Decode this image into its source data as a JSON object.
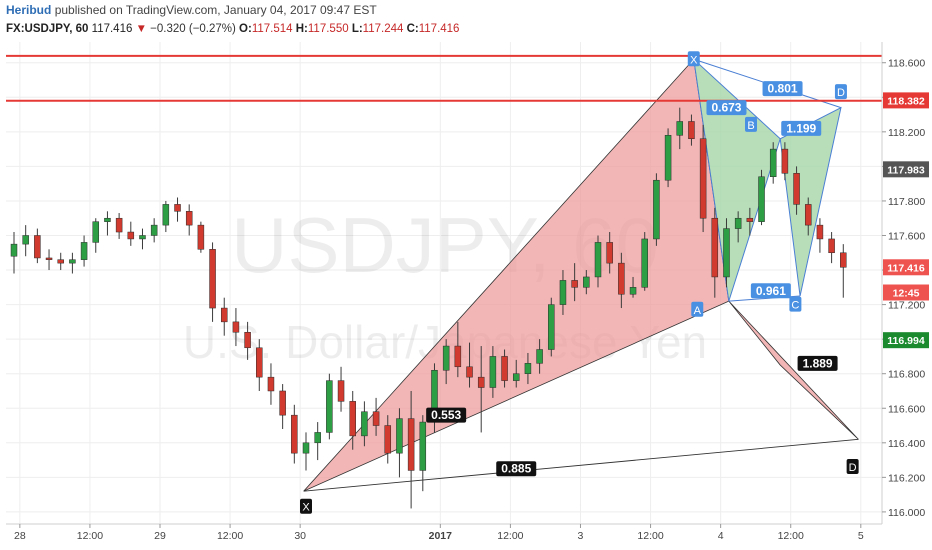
{
  "header": {
    "author": "Heribud",
    "published": "published on TradingView.com, January 04, 2017 09:47 EST",
    "symbol": "FX:USDJPY, 60",
    "last": "117.416",
    "arrow": "▼",
    "change": "−0.320 (−0.27%)",
    "o_label": "O:",
    "o_value": "117.514",
    "h_label": "H:",
    "h_value": "117.550",
    "l_label": "L:",
    "l_value": "117.244",
    "c_label": "C:",
    "c_value": "117.416"
  },
  "watermark": {
    "main": "USDJPY, 60",
    "sub": "U.S. Dollar/Japanese Yen"
  },
  "chart_data": {
    "type": "candlestick",
    "interval": "60",
    "ylim": [
      115.93,
      118.72
    ],
    "y_ticks": [
      116.0,
      116.2,
      116.4,
      116.6,
      116.8,
      117.0,
      117.2,
      117.4,
      117.6,
      117.8,
      118.0,
      118.2,
      118.4,
      118.6
    ],
    "y_tick_labels": [
      "116.000",
      "116.200",
      "116.400",
      "116.600",
      "116.800",
      "117.000",
      "117.200",
      "117.400",
      "117.600",
      "117.800",
      "118.000",
      "118.200",
      "118.400",
      "118.600"
    ],
    "x_ticks": [
      {
        "label": "28",
        "x": 0.5
      },
      {
        "label": "12:00",
        "x": 6.5
      },
      {
        "label": "29",
        "x": 12.5
      },
      {
        "label": "12:00",
        "x": 18.5
      },
      {
        "label": "30",
        "x": 24.5
      },
      {
        "label": "2017",
        "x": 36.5
      },
      {
        "label": "12:00",
        "x": 42.5
      },
      {
        "label": "3",
        "x": 48.5
      },
      {
        "label": "12:00",
        "x": 54.5
      },
      {
        "label": "4",
        "x": 60.5
      },
      {
        "label": "12:00",
        "x": 66.5
      },
      {
        "label": "5",
        "x": 72.5
      }
    ],
    "candles": [
      {
        "o": 117.48,
        "h": 117.62,
        "l": 117.38,
        "c": 117.55
      },
      {
        "o": 117.55,
        "h": 117.66,
        "l": 117.48,
        "c": 117.6
      },
      {
        "o": 117.6,
        "h": 117.64,
        "l": 117.44,
        "c": 117.47
      },
      {
        "o": 117.47,
        "h": 117.52,
        "l": 117.4,
        "c": 117.46
      },
      {
        "o": 117.46,
        "h": 117.5,
        "l": 117.4,
        "c": 117.44
      },
      {
        "o": 117.44,
        "h": 117.5,
        "l": 117.38,
        "c": 117.46
      },
      {
        "o": 117.46,
        "h": 117.6,
        "l": 117.42,
        "c": 117.56
      },
      {
        "o": 117.56,
        "h": 117.7,
        "l": 117.5,
        "c": 117.68
      },
      {
        "o": 117.68,
        "h": 117.74,
        "l": 117.6,
        "c": 117.7
      },
      {
        "o": 117.7,
        "h": 117.73,
        "l": 117.58,
        "c": 117.62
      },
      {
        "o": 117.62,
        "h": 117.68,
        "l": 117.54,
        "c": 117.58
      },
      {
        "o": 117.58,
        "h": 117.64,
        "l": 117.52,
        "c": 117.6
      },
      {
        "o": 117.6,
        "h": 117.7,
        "l": 117.56,
        "c": 117.66
      },
      {
        "o": 117.66,
        "h": 117.8,
        "l": 117.62,
        "c": 117.78
      },
      {
        "o": 117.78,
        "h": 117.82,
        "l": 117.68,
        "c": 117.74
      },
      {
        "o": 117.74,
        "h": 117.78,
        "l": 117.6,
        "c": 117.66
      },
      {
        "o": 117.66,
        "h": 117.68,
        "l": 117.5,
        "c": 117.52
      },
      {
        "o": 117.52,
        "h": 117.56,
        "l": 117.1,
        "c": 117.18
      },
      {
        "o": 117.18,
        "h": 117.24,
        "l": 117.02,
        "c": 117.1
      },
      {
        "o": 117.1,
        "h": 117.18,
        "l": 116.96,
        "c": 117.04
      },
      {
        "o": 117.04,
        "h": 117.1,
        "l": 116.88,
        "c": 116.95
      },
      {
        "o": 116.95,
        "h": 117.0,
        "l": 116.7,
        "c": 116.78
      },
      {
        "o": 116.78,
        "h": 116.86,
        "l": 116.62,
        "c": 116.7
      },
      {
        "o": 116.7,
        "h": 116.74,
        "l": 116.48,
        "c": 116.56
      },
      {
        "o": 116.56,
        "h": 116.62,
        "l": 116.28,
        "c": 116.34
      },
      {
        "o": 116.34,
        "h": 116.46,
        "l": 116.24,
        "c": 116.4
      },
      {
        "o": 116.4,
        "h": 116.52,
        "l": 116.3,
        "c": 116.46
      },
      {
        "o": 116.46,
        "h": 116.8,
        "l": 116.42,
        "c": 116.76
      },
      {
        "o": 116.76,
        "h": 116.84,
        "l": 116.58,
        "c": 116.64
      },
      {
        "o": 116.64,
        "h": 116.7,
        "l": 116.36,
        "c": 116.44
      },
      {
        "o": 116.44,
        "h": 116.64,
        "l": 116.38,
        "c": 116.58
      },
      {
        "o": 116.58,
        "h": 116.66,
        "l": 116.44,
        "c": 116.5
      },
      {
        "o": 116.5,
        "h": 116.56,
        "l": 116.28,
        "c": 116.34
      },
      {
        "o": 116.34,
        "h": 116.6,
        "l": 116.2,
        "c": 116.54
      },
      {
        "o": 116.54,
        "h": 116.7,
        "l": 116.02,
        "c": 116.24
      },
      {
        "o": 116.24,
        "h": 116.56,
        "l": 116.12,
        "c": 116.52
      },
      {
        "o": 116.52,
        "h": 116.86,
        "l": 116.46,
        "c": 116.82
      },
      {
        "o": 116.82,
        "h": 117.0,
        "l": 116.74,
        "c": 116.96
      },
      {
        "o": 116.96,
        "h": 117.1,
        "l": 116.78,
        "c": 116.84
      },
      {
        "o": 116.84,
        "h": 116.98,
        "l": 116.72,
        "c": 116.78
      },
      {
        "o": 116.78,
        "h": 116.96,
        "l": 116.46,
        "c": 116.72
      },
      {
        "o": 116.72,
        "h": 116.96,
        "l": 116.66,
        "c": 116.9
      },
      {
        "o": 116.9,
        "h": 116.94,
        "l": 116.72,
        "c": 116.76
      },
      {
        "o": 116.76,
        "h": 116.88,
        "l": 116.72,
        "c": 116.8
      },
      {
        "o": 116.8,
        "h": 116.92,
        "l": 116.74,
        "c": 116.86
      },
      {
        "o": 116.86,
        "h": 117.0,
        "l": 116.8,
        "c": 116.94
      },
      {
        "o": 116.94,
        "h": 117.24,
        "l": 116.9,
        "c": 117.2
      },
      {
        "o": 117.2,
        "h": 117.4,
        "l": 117.14,
        "c": 117.34
      },
      {
        "o": 117.34,
        "h": 117.44,
        "l": 117.22,
        "c": 117.3
      },
      {
        "o": 117.3,
        "h": 117.4,
        "l": 117.26,
        "c": 117.36
      },
      {
        "o": 117.36,
        "h": 117.6,
        "l": 117.3,
        "c": 117.56
      },
      {
        "o": 117.56,
        "h": 117.62,
        "l": 117.38,
        "c": 117.44
      },
      {
        "o": 117.44,
        "h": 117.5,
        "l": 117.18,
        "c": 117.26
      },
      {
        "o": 117.26,
        "h": 117.36,
        "l": 117.24,
        "c": 117.3
      },
      {
        "o": 117.3,
        "h": 117.62,
        "l": 117.28,
        "c": 117.58
      },
      {
        "o": 117.58,
        "h": 117.96,
        "l": 117.54,
        "c": 117.92
      },
      {
        "o": 117.92,
        "h": 118.22,
        "l": 117.88,
        "c": 118.18
      },
      {
        "o": 118.18,
        "h": 118.34,
        "l": 118.1,
        "c": 118.26
      },
      {
        "o": 118.26,
        "h": 118.3,
        "l": 118.12,
        "c": 118.16
      },
      {
        "o": 118.16,
        "h": 118.24,
        "l": 117.62,
        "c": 117.7
      },
      {
        "o": 117.7,
        "h": 117.76,
        "l": 117.24,
        "c": 117.36
      },
      {
        "o": 117.36,
        "h": 117.7,
        "l": 117.3,
        "c": 117.64
      },
      {
        "o": 117.64,
        "h": 117.74,
        "l": 117.56,
        "c": 117.7
      },
      {
        "o": 117.7,
        "h": 117.76,
        "l": 117.6,
        "c": 117.68
      },
      {
        "o": 117.68,
        "h": 117.98,
        "l": 117.66,
        "c": 117.94
      },
      {
        "o": 117.94,
        "h": 118.14,
        "l": 117.9,
        "c": 118.1
      },
      {
        "o": 118.1,
        "h": 118.14,
        "l": 117.92,
        "c": 117.96
      },
      {
        "o": 117.96,
        "h": 118.0,
        "l": 117.72,
        "c": 117.78
      },
      {
        "o": 117.78,
        "h": 117.82,
        "l": 117.6,
        "c": 117.66
      },
      {
        "o": 117.66,
        "h": 117.7,
        "l": 117.5,
        "c": 117.58
      },
      {
        "o": 117.58,
        "h": 117.62,
        "l": 117.44,
        "c": 117.5
      },
      {
        "o": 117.5,
        "h": 117.55,
        "l": 117.24,
        "c": 117.416
      }
    ],
    "patterns": [
      {
        "name": "bat",
        "points": {
          "X": [
            24.8,
            116.12
          ],
          "A": [
            58.2,
            118.62
          ],
          "B": [
            61.2,
            117.22
          ],
          "C": [
            65.6,
            116.85
          ],
          "D": [
            72.3,
            116.42
          ]
        },
        "ratios": [
          {
            "label": "0.553",
            "x": 37.0,
            "y": 116.56
          },
          {
            "label": "1.889",
            "x": 68.8,
            "y": 116.86
          },
          {
            "label": "0.885",
            "x": 43.0,
            "y": 116.25
          }
        ]
      },
      {
        "name": "bat-small",
        "points": {
          "X": [
            58.2,
            118.62
          ],
          "A": [
            61.2,
            117.22
          ],
          "B": [
            65.6,
            118.16
          ],
          "C": [
            67.3,
            117.25
          ],
          "D": [
            70.8,
            118.34
          ]
        },
        "ratios": [
          {
            "label": "0.673",
            "x": 61.0,
            "y": 118.34
          },
          {
            "label": "0.801",
            "x": 65.8,
            "y": 118.45
          },
          {
            "label": "1.199",
            "x": 67.4,
            "y": 118.22
          },
          {
            "label": "0.961",
            "x": 64.8,
            "y": 117.28
          }
        ]
      }
    ],
    "point_labels": [
      {
        "label": "X",
        "x": 58.2,
        "y": 118.62
      },
      {
        "label": "B",
        "x": 63.1,
        "y": 118.24
      },
      {
        "label": "D",
        "x": 70.8,
        "y": 118.43
      },
      {
        "label": "A",
        "x": 58.5,
        "y": 117.17
      },
      {
        "label": "C",
        "x": 66.9,
        "y": 117.2
      },
      {
        "label": "X",
        "x": 25.0,
        "y": 116.03
      },
      {
        "label": "D",
        "x": 71.8,
        "y": 116.26
      }
    ],
    "hlines": [
      118.64,
      118.38
    ],
    "price_tags": [
      {
        "label": "118.382",
        "value": 118.382,
        "color": "#e53935"
      },
      {
        "label": "117.983",
        "value": 117.983,
        "color": "#555555"
      },
      {
        "label": "117.416",
        "value": 117.416,
        "color": "#ef5350"
      },
      {
        "label": "12:45",
        "value": 117.27,
        "color": "#ef5350"
      },
      {
        "label": "116.994",
        "value": 116.994,
        "color": "#1b8a2e"
      }
    ]
  }
}
